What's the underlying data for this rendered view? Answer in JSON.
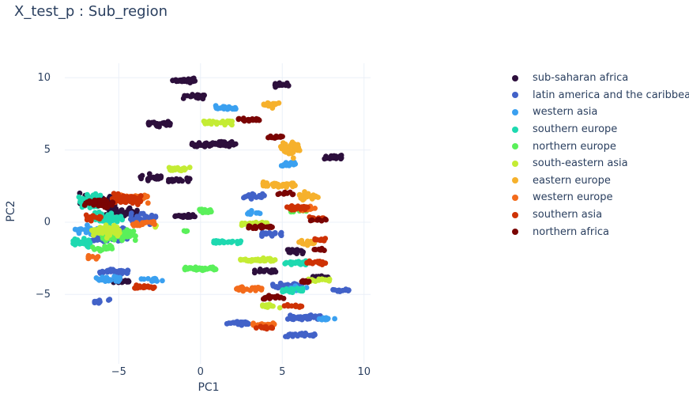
{
  "title": "X_test_p : Sub_region",
  "chart_data": {
    "type": "scatter",
    "title": "X_test_p : Sub_region",
    "xlabel": "PC1",
    "ylabel": "PC2",
    "xlim": [
      -8.3,
      10.4
    ],
    "ylim": [
      -9.8,
      11.0
    ],
    "xticks": [
      -5,
      0,
      5,
      10
    ],
    "yticks": [
      -5,
      0,
      5,
      10
    ],
    "xtick_labels": [
      "−5",
      "0",
      "5",
      "10"
    ],
    "ytick_labels": [
      "−5",
      "0",
      "5",
      "10"
    ],
    "grid": true,
    "legend_position": "right",
    "series": [
      {
        "name": "sub-saharan africa",
        "color": "#2d0f3c",
        "clusters": [
          [
            -1.0,
            9.8,
            1.4,
            0.35,
            30
          ],
          [
            5.0,
            9.5,
            0.9,
            0.3,
            20
          ],
          [
            -0.4,
            8.7,
            1.3,
            0.35,
            25
          ],
          [
            -2.5,
            6.8,
            1.4,
            0.4,
            25
          ],
          [
            0.8,
            5.4,
            2.8,
            0.45,
            60
          ],
          [
            8.1,
            4.5,
            1.1,
            0.3,
            20
          ],
          [
            -3.0,
            3.1,
            1.4,
            0.5,
            25
          ],
          [
            -1.3,
            2.9,
            1.4,
            0.4,
            20
          ],
          [
            -0.9,
            0.4,
            1.4,
            0.4,
            20
          ],
          [
            -6.3,
            1.5,
            2.2,
            1.2,
            60
          ],
          [
            -4.8,
            0.6,
            2.0,
            1.0,
            40
          ],
          [
            -4.8,
            -4.1,
            1.2,
            0.35,
            20
          ],
          [
            4.0,
            -3.4,
            1.4,
            0.4,
            20
          ],
          [
            5.9,
            -2.0,
            1.4,
            0.4,
            15
          ],
          [
            7.3,
            -3.8,
            1.1,
            0.3,
            15
          ]
        ]
      },
      {
        "name": "latin america and the caribbean",
        "color": "#4262c8",
        "clusters": [
          [
            -3.5,
            0.3,
            1.6,
            1.0,
            40
          ],
          [
            -5.5,
            -1.0,
            2.4,
            1.4,
            80
          ],
          [
            -5.3,
            -3.4,
            1.8,
            0.5,
            40
          ],
          [
            -6.0,
            -5.5,
            1.0,
            0.35,
            10
          ],
          [
            3.3,
            1.8,
            1.4,
            0.4,
            25
          ],
          [
            4.4,
            -0.8,
            1.4,
            0.4,
            20
          ],
          [
            5.3,
            -4.4,
            1.8,
            0.45,
            35
          ],
          [
            2.3,
            -7.0,
            1.4,
            0.35,
            25
          ],
          [
            6.3,
            -6.6,
            2.2,
            0.5,
            50
          ],
          [
            6.1,
            -7.8,
            1.8,
            0.45,
            30
          ],
          [
            8.6,
            -4.7,
            1.0,
            0.25,
            15
          ]
        ]
      },
      {
        "name": "western asia",
        "color": "#3aa0f0",
        "clusters": [
          [
            -7.0,
            -0.6,
            1.4,
            0.8,
            25
          ],
          [
            -5.6,
            -3.9,
            1.6,
            0.5,
            25
          ],
          [
            -3.0,
            -4.0,
            1.4,
            0.4,
            15
          ],
          [
            1.6,
            7.9,
            1.4,
            0.35,
            25
          ],
          [
            5.3,
            4.0,
            1.0,
            0.4,
            15
          ],
          [
            3.4,
            0.6,
            1.2,
            0.35,
            10
          ],
          [
            6.0,
            -4.6,
            1.0,
            0.35,
            15
          ],
          [
            7.7,
            -6.7,
            1.2,
            0.25,
            10
          ]
        ]
      },
      {
        "name": "southern europe",
        "color": "#1ed9b0",
        "clusters": [
          [
            -7.2,
            -1.4,
            1.2,
            0.8,
            40
          ],
          [
            -6.8,
            1.5,
            1.4,
            1.4,
            40
          ],
          [
            -5.6,
            0.2,
            1.8,
            1.0,
            45
          ],
          [
            1.6,
            -1.4,
            1.8,
            0.4,
            30
          ],
          [
            5.8,
            -2.8,
            1.4,
            0.4,
            25
          ],
          [
            5.6,
            -4.7,
            1.4,
            0.35,
            20
          ]
        ]
      },
      {
        "name": "northern europe",
        "color": "#5af05a",
        "clusters": [
          [
            -5.0,
            -0.9,
            2.2,
            1.0,
            60
          ],
          [
            -6.0,
            -1.8,
            1.2,
            0.6,
            20
          ],
          [
            0.3,
            0.8,
            1.1,
            0.45,
            20
          ],
          [
            -1.0,
            -0.6,
            0.4,
            0.2,
            4
          ],
          [
            0.0,
            -3.2,
            2.0,
            0.3,
            40
          ],
          [
            6.0,
            0.8,
            1.0,
            0.3,
            10
          ]
        ]
      },
      {
        "name": "south-eastern asia",
        "color": "#c4ec34",
        "clusters": [
          [
            -5.8,
            -0.6,
            1.8,
            1.0,
            50
          ],
          [
            -1.3,
            3.7,
            1.3,
            0.45,
            25
          ],
          [
            1.1,
            6.9,
            1.8,
            0.4,
            35
          ],
          [
            3.5,
            -2.6,
            2.2,
            0.4,
            40
          ],
          [
            3.3,
            -0.1,
            1.6,
            0.4,
            25
          ],
          [
            7.2,
            -4.0,
            1.4,
            0.35,
            20
          ],
          [
            4.4,
            -5.8,
            1.2,
            0.3,
            15
          ],
          [
            -2.8,
            -0.3,
            0.3,
            0.2,
            3
          ]
        ]
      },
      {
        "name": "eastern europe",
        "color": "#f6b12c",
        "clusters": [
          [
            4.3,
            8.1,
            1.0,
            0.4,
            20
          ],
          [
            5.5,
            5.1,
            1.2,
            1.4,
            40
          ],
          [
            4.8,
            2.6,
            2.0,
            0.45,
            40
          ],
          [
            6.6,
            1.8,
            1.2,
            0.8,
            25
          ],
          [
            6.5,
            -1.4,
            1.0,
            0.45,
            15
          ]
        ]
      },
      {
        "name": "western europe",
        "color": "#f36b1b",
        "clusters": [
          [
            -4.2,
            1.7,
            2.0,
            0.8,
            40
          ],
          [
            -3.5,
            -0.1,
            1.4,
            0.5,
            20
          ],
          [
            -6.7,
            -2.4,
            1.0,
            0.4,
            10
          ],
          [
            3.0,
            -4.6,
            1.6,
            0.35,
            25
          ],
          [
            3.9,
            -7.1,
            1.4,
            0.35,
            20
          ],
          [
            6.6,
            0.9,
            1.0,
            0.4,
            15
          ]
        ]
      },
      {
        "name": "southern asia",
        "color": "#ce3205",
        "clusters": [
          [
            -4.5,
            1.6,
            1.8,
            0.9,
            50
          ],
          [
            -6.4,
            0.3,
            1.2,
            0.6,
            15
          ],
          [
            -3.5,
            -4.5,
            1.4,
            0.3,
            20
          ],
          [
            5.9,
            1.0,
            1.4,
            0.35,
            25
          ],
          [
            7.1,
            0.3,
            1.0,
            0.3,
            10
          ],
          [
            7.3,
            -1.2,
            0.8,
            0.35,
            10
          ],
          [
            7.1,
            -2.8,
            1.2,
            0.4,
            20
          ],
          [
            3.9,
            -7.3,
            1.0,
            0.3,
            10
          ],
          [
            5.6,
            -5.8,
            1.2,
            0.3,
            10
          ]
        ]
      },
      {
        "name": "northern africa",
        "color": "#7a0403",
        "clusters": [
          [
            -6.2,
            1.3,
            1.8,
            0.8,
            40
          ],
          [
            3.0,
            7.1,
            1.4,
            0.3,
            20
          ],
          [
            4.6,
            5.9,
            1.0,
            0.35,
            15
          ],
          [
            5.2,
            2.0,
            1.0,
            0.3,
            10
          ],
          [
            3.7,
            -0.3,
            1.6,
            0.35,
            20
          ],
          [
            7.2,
            0.1,
            1.0,
            0.35,
            10
          ],
          [
            7.3,
            -1.9,
            0.8,
            0.3,
            10
          ],
          [
            4.4,
            -5.2,
            1.4,
            0.35,
            20
          ],
          [
            6.3,
            -4.1,
            0.8,
            0.3,
            10
          ]
        ]
      }
    ]
  }
}
